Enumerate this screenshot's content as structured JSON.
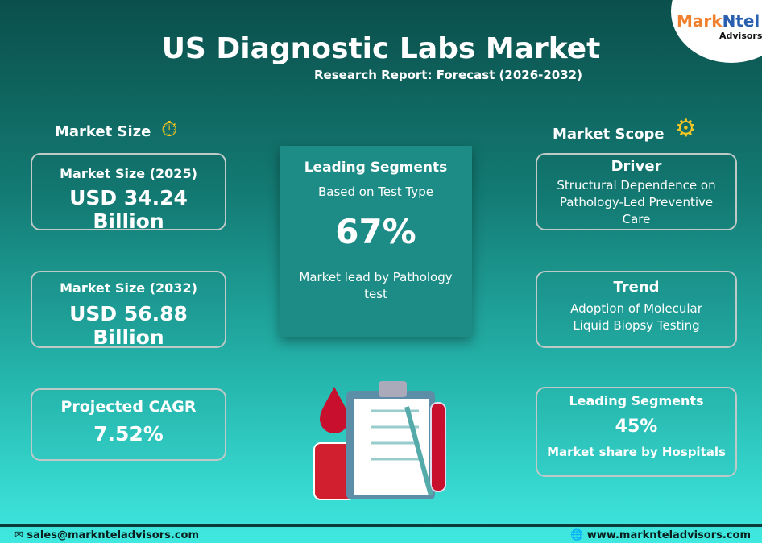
{
  "header": {
    "title": "US Diagnostic Labs Market",
    "subtitle": "Research Report: Forecast (2026-2032)"
  },
  "logo": {
    "part1": "Mark",
    "part2": "Ntel",
    "part3": "Advisors"
  },
  "market_size": {
    "heading": "Market Size",
    "cards": [
      {
        "label": "Market Size (2025)",
        "value": "USD 34.24 Billion"
      },
      {
        "label": "Market Size (2032)",
        "value": "USD 56.88 Billion"
      },
      {
        "label": "Projected CAGR",
        "value": "7.52%"
      }
    ]
  },
  "leading": {
    "title": "Leading Segments",
    "sub": "Based on Test Type",
    "value": "67%",
    "desc": "Market lead by Pathology test"
  },
  "scope": {
    "heading": "Market Scope",
    "cards": [
      {
        "title": "Driver",
        "text": "Structural Dependence on Pathology-Led Preventive Care"
      },
      {
        "title": "Trend",
        "text": "Adoption of Molecular Liquid Biopsy Testing"
      },
      {
        "title": "Leading Segments",
        "value": "45%",
        "text": "Market share by Hospitals"
      }
    ]
  },
  "footer": {
    "email": "sales@marknteladvisors.com",
    "website": "www.marknteladvisors.com"
  },
  "colors": {
    "bg_top": "#0b4f4b",
    "bg_bottom": "#3fe9e0",
    "icon": "#f3c623"
  }
}
